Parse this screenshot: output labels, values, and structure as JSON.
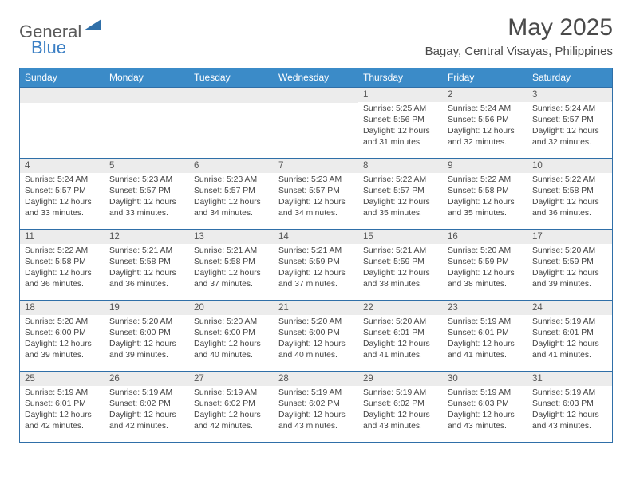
{
  "brand": {
    "text_general": "General",
    "text_blue": "Blue"
  },
  "title": "May 2025",
  "subtitle": "Bagay, Central Visayas, Philippines",
  "colors": {
    "header_bg": "#3b8bc8",
    "header_text": "#ffffff",
    "border": "#2f6fa8",
    "daynum_bg": "#ececec",
    "text": "#444444",
    "logo_gray": "#5a5a5a",
    "logo_blue": "#3b7fc4"
  },
  "dow": [
    "Sunday",
    "Monday",
    "Tuesday",
    "Wednesday",
    "Thursday",
    "Friday",
    "Saturday"
  ],
  "weeks": [
    [
      {
        "n": "",
        "sr": "",
        "ss": "",
        "dl": ""
      },
      {
        "n": "",
        "sr": "",
        "ss": "",
        "dl": ""
      },
      {
        "n": "",
        "sr": "",
        "ss": "",
        "dl": ""
      },
      {
        "n": "",
        "sr": "",
        "ss": "",
        "dl": ""
      },
      {
        "n": "1",
        "sr": "Sunrise: 5:25 AM",
        "ss": "Sunset: 5:56 PM",
        "dl": "Daylight: 12 hours and 31 minutes."
      },
      {
        "n": "2",
        "sr": "Sunrise: 5:24 AM",
        "ss": "Sunset: 5:56 PM",
        "dl": "Daylight: 12 hours and 32 minutes."
      },
      {
        "n": "3",
        "sr": "Sunrise: 5:24 AM",
        "ss": "Sunset: 5:57 PM",
        "dl": "Daylight: 12 hours and 32 minutes."
      }
    ],
    [
      {
        "n": "4",
        "sr": "Sunrise: 5:24 AM",
        "ss": "Sunset: 5:57 PM",
        "dl": "Daylight: 12 hours and 33 minutes."
      },
      {
        "n": "5",
        "sr": "Sunrise: 5:23 AM",
        "ss": "Sunset: 5:57 PM",
        "dl": "Daylight: 12 hours and 33 minutes."
      },
      {
        "n": "6",
        "sr": "Sunrise: 5:23 AM",
        "ss": "Sunset: 5:57 PM",
        "dl": "Daylight: 12 hours and 34 minutes."
      },
      {
        "n": "7",
        "sr": "Sunrise: 5:23 AM",
        "ss": "Sunset: 5:57 PM",
        "dl": "Daylight: 12 hours and 34 minutes."
      },
      {
        "n": "8",
        "sr": "Sunrise: 5:22 AM",
        "ss": "Sunset: 5:57 PM",
        "dl": "Daylight: 12 hours and 35 minutes."
      },
      {
        "n": "9",
        "sr": "Sunrise: 5:22 AM",
        "ss": "Sunset: 5:58 PM",
        "dl": "Daylight: 12 hours and 35 minutes."
      },
      {
        "n": "10",
        "sr": "Sunrise: 5:22 AM",
        "ss": "Sunset: 5:58 PM",
        "dl": "Daylight: 12 hours and 36 minutes."
      }
    ],
    [
      {
        "n": "11",
        "sr": "Sunrise: 5:22 AM",
        "ss": "Sunset: 5:58 PM",
        "dl": "Daylight: 12 hours and 36 minutes."
      },
      {
        "n": "12",
        "sr": "Sunrise: 5:21 AM",
        "ss": "Sunset: 5:58 PM",
        "dl": "Daylight: 12 hours and 36 minutes."
      },
      {
        "n": "13",
        "sr": "Sunrise: 5:21 AM",
        "ss": "Sunset: 5:58 PM",
        "dl": "Daylight: 12 hours and 37 minutes."
      },
      {
        "n": "14",
        "sr": "Sunrise: 5:21 AM",
        "ss": "Sunset: 5:59 PM",
        "dl": "Daylight: 12 hours and 37 minutes."
      },
      {
        "n": "15",
        "sr": "Sunrise: 5:21 AM",
        "ss": "Sunset: 5:59 PM",
        "dl": "Daylight: 12 hours and 38 minutes."
      },
      {
        "n": "16",
        "sr": "Sunrise: 5:20 AM",
        "ss": "Sunset: 5:59 PM",
        "dl": "Daylight: 12 hours and 38 minutes."
      },
      {
        "n": "17",
        "sr": "Sunrise: 5:20 AM",
        "ss": "Sunset: 5:59 PM",
        "dl": "Daylight: 12 hours and 39 minutes."
      }
    ],
    [
      {
        "n": "18",
        "sr": "Sunrise: 5:20 AM",
        "ss": "Sunset: 6:00 PM",
        "dl": "Daylight: 12 hours and 39 minutes."
      },
      {
        "n": "19",
        "sr": "Sunrise: 5:20 AM",
        "ss": "Sunset: 6:00 PM",
        "dl": "Daylight: 12 hours and 39 minutes."
      },
      {
        "n": "20",
        "sr": "Sunrise: 5:20 AM",
        "ss": "Sunset: 6:00 PM",
        "dl": "Daylight: 12 hours and 40 minutes."
      },
      {
        "n": "21",
        "sr": "Sunrise: 5:20 AM",
        "ss": "Sunset: 6:00 PM",
        "dl": "Daylight: 12 hours and 40 minutes."
      },
      {
        "n": "22",
        "sr": "Sunrise: 5:20 AM",
        "ss": "Sunset: 6:01 PM",
        "dl": "Daylight: 12 hours and 41 minutes."
      },
      {
        "n": "23",
        "sr": "Sunrise: 5:19 AM",
        "ss": "Sunset: 6:01 PM",
        "dl": "Daylight: 12 hours and 41 minutes."
      },
      {
        "n": "24",
        "sr": "Sunrise: 5:19 AM",
        "ss": "Sunset: 6:01 PM",
        "dl": "Daylight: 12 hours and 41 minutes."
      }
    ],
    [
      {
        "n": "25",
        "sr": "Sunrise: 5:19 AM",
        "ss": "Sunset: 6:01 PM",
        "dl": "Daylight: 12 hours and 42 minutes."
      },
      {
        "n": "26",
        "sr": "Sunrise: 5:19 AM",
        "ss": "Sunset: 6:02 PM",
        "dl": "Daylight: 12 hours and 42 minutes."
      },
      {
        "n": "27",
        "sr": "Sunrise: 5:19 AM",
        "ss": "Sunset: 6:02 PM",
        "dl": "Daylight: 12 hours and 42 minutes."
      },
      {
        "n": "28",
        "sr": "Sunrise: 5:19 AM",
        "ss": "Sunset: 6:02 PM",
        "dl": "Daylight: 12 hours and 43 minutes."
      },
      {
        "n": "29",
        "sr": "Sunrise: 5:19 AM",
        "ss": "Sunset: 6:02 PM",
        "dl": "Daylight: 12 hours and 43 minutes."
      },
      {
        "n": "30",
        "sr": "Sunrise: 5:19 AM",
        "ss": "Sunset: 6:03 PM",
        "dl": "Daylight: 12 hours and 43 minutes."
      },
      {
        "n": "31",
        "sr": "Sunrise: 5:19 AM",
        "ss": "Sunset: 6:03 PM",
        "dl": "Daylight: 12 hours and 43 minutes."
      }
    ]
  ]
}
